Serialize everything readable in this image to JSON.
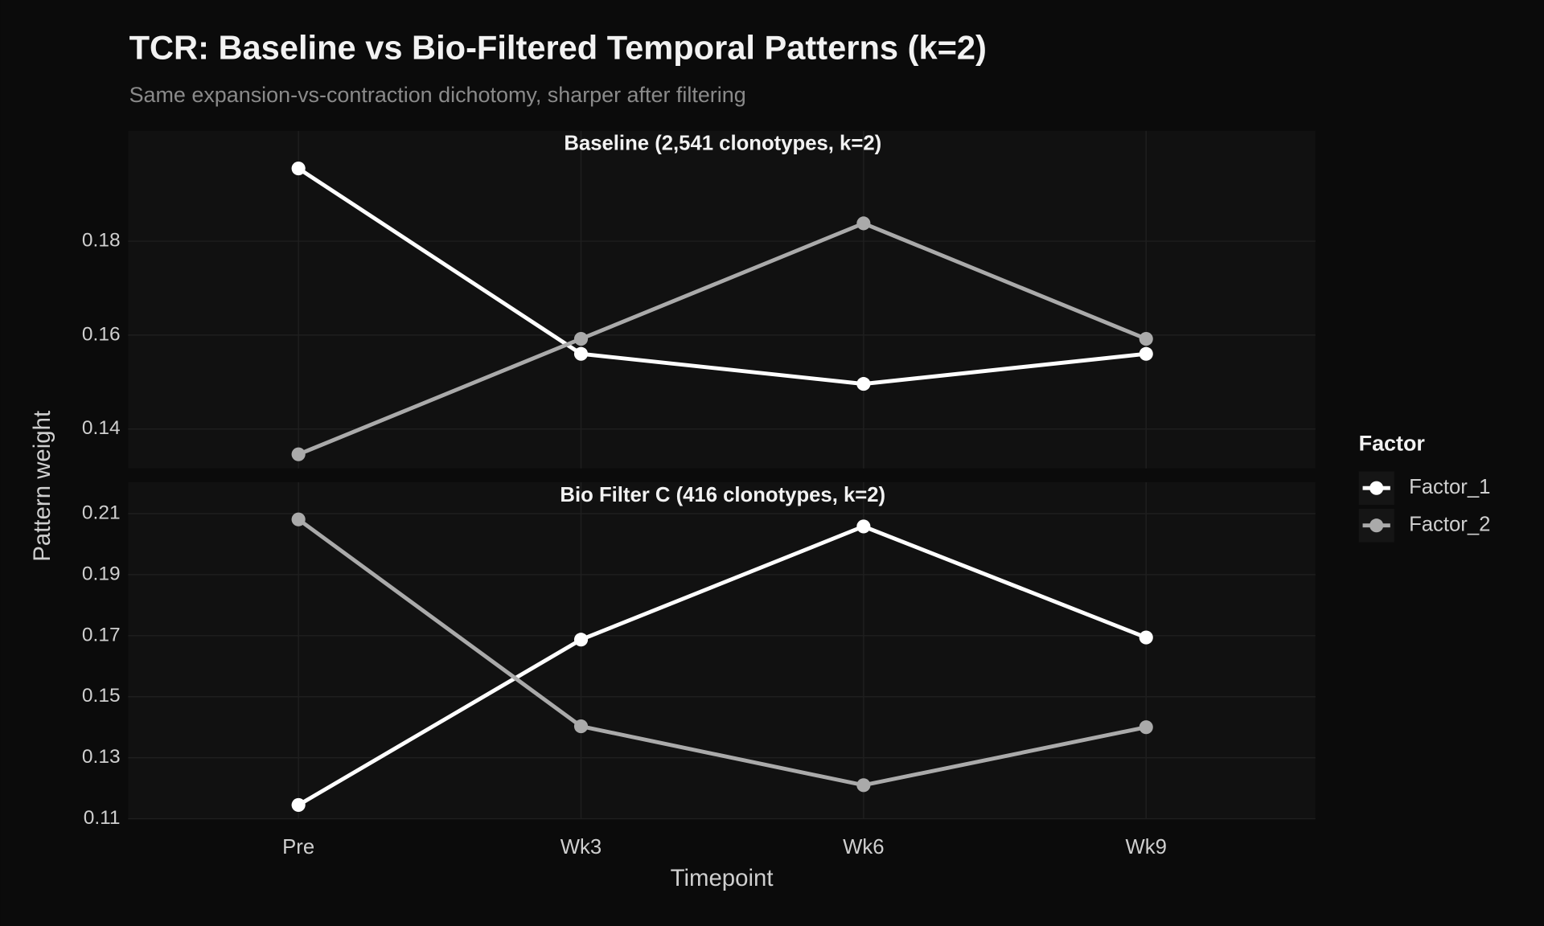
{
  "figure": {
    "title": "TCR: Baseline vs Bio-Filtered Temporal Patterns (k=2)",
    "subtitle": "Same expansion-vs-contraction dichotomy, sharper after filtering",
    "x_label": "Timepoint",
    "y_label": "Pattern weight",
    "legend_title": "Factor",
    "legend": "right",
    "grid": true
  },
  "chart_data": [
    {
      "type": "line",
      "title": "Baseline (2,541 clonotypes, k=2)",
      "categories": [
        "Pre",
        "Wk3",
        "Wk6",
        "Wk9"
      ],
      "series": [
        {
          "name": "Factor_1",
          "color": "#ffffff",
          "values": [
            0.1955,
            0.156,
            0.1496,
            0.156
          ]
        },
        {
          "name": "Factor_2",
          "color": "#aaaaaa",
          "values": [
            0.1346,
            0.1592,
            0.1838,
            0.1592
          ]
        }
      ],
      "ylim": [
        0.1316,
        0.2035
      ],
      "yticks": [
        0.14,
        0.16,
        0.18
      ]
    },
    {
      "type": "line",
      "title": "Bio Filter C (416 clonotypes, k=2)",
      "categories": [
        "Pre",
        "Wk3",
        "Wk6",
        "Wk9"
      ],
      "series": [
        {
          "name": "Factor_1",
          "color": "#ffffff",
          "values": [
            0.1145,
            0.1687,
            0.2058,
            0.1694
          ]
        },
        {
          "name": "Factor_2",
          "color": "#aaaaaa",
          "values": [
            0.2081,
            0.1403,
            0.121,
            0.14
          ]
        }
      ],
      "ylim": [
        0.11,
        0.2203
      ],
      "yticks": [
        0.11,
        0.13,
        0.15,
        0.17,
        0.19,
        0.21
      ]
    }
  ]
}
